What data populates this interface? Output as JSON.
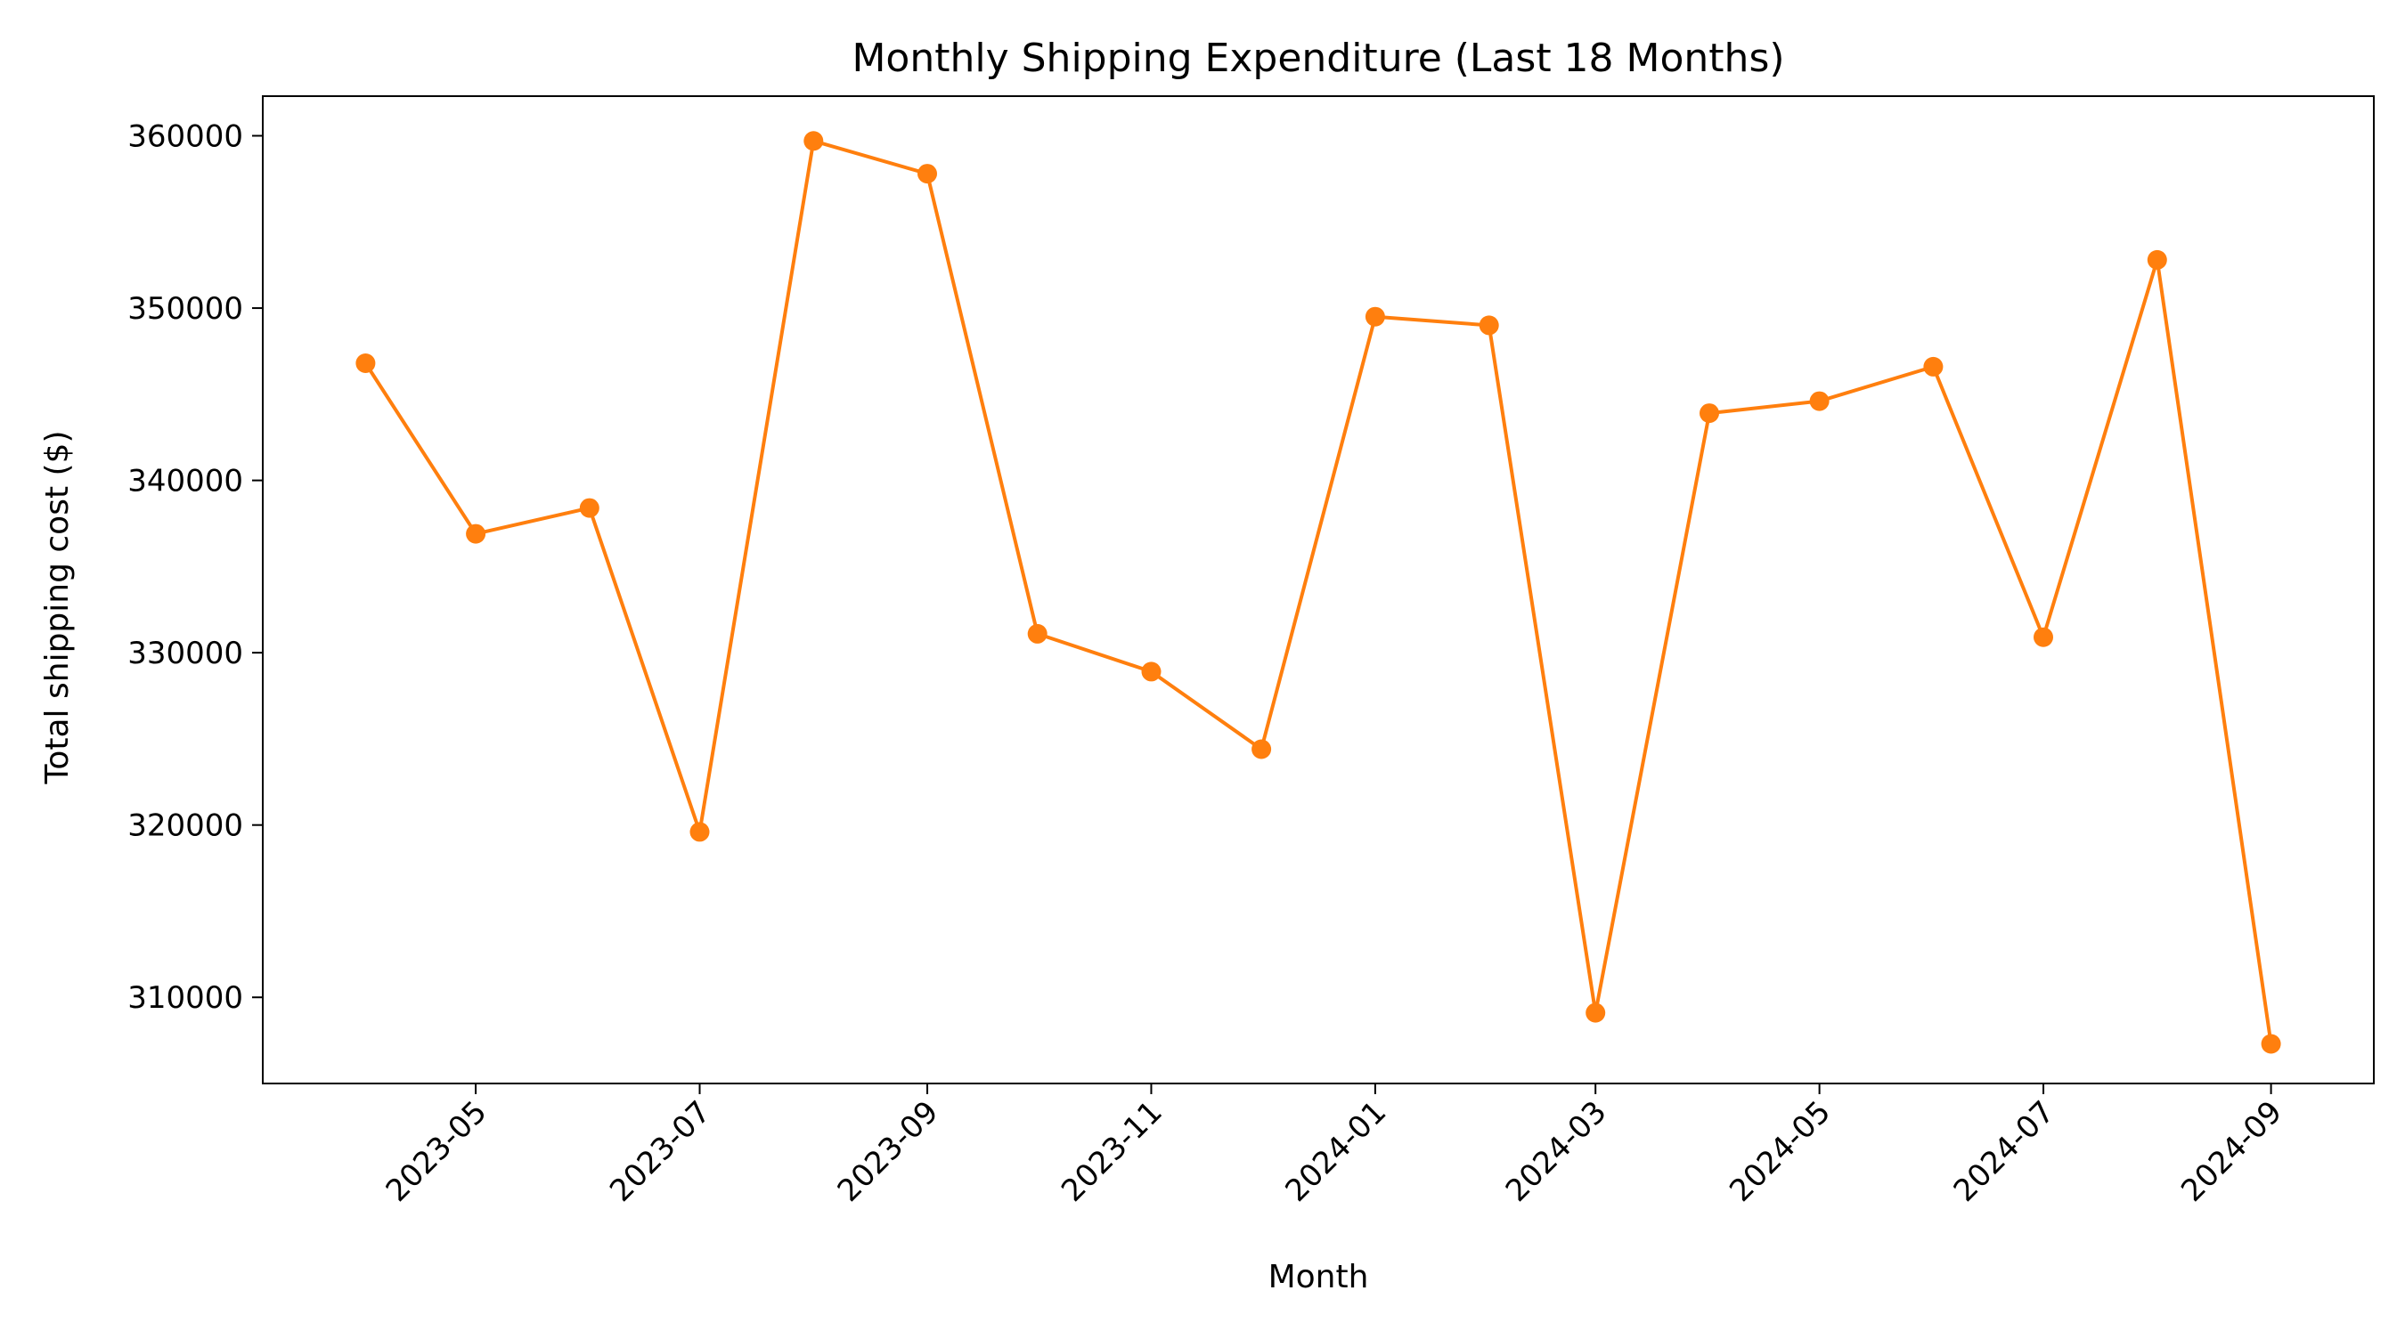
{
  "chart_data": {
    "type": "line",
    "title": "Monthly Shipping Expenditure (Last 18 Months)",
    "xlabel": "Month",
    "ylabel": "Total shipping cost ($)",
    "x": [
      "2023-04",
      "2023-05",
      "2023-06",
      "2023-07",
      "2023-08",
      "2023-09",
      "2023-10",
      "2023-11",
      "2023-12",
      "2024-01",
      "2024-02",
      "2024-03",
      "2024-04",
      "2024-05",
      "2024-06",
      "2024-07",
      "2024-08",
      "2024-09"
    ],
    "series": [
      {
        "values": [
          346800,
          336900,
          338400,
          319600,
          359700,
          357800,
          331100,
          328900,
          324400,
          349500,
          349000,
          309100,
          343900,
          344600,
          346600,
          330900,
          352800,
          307300
        ],
        "color": "#ff7f0e",
        "marker": "circle"
      }
    ],
    "x_ticks": [
      "2023-05",
      "2023-07",
      "2023-09",
      "2023-11",
      "2024-01",
      "2024-03",
      "2024-05",
      "2024-07",
      "2024-09"
    ],
    "y_ticks": [
      310000,
      320000,
      330000,
      340000,
      350000,
      360000
    ],
    "ylim": [
      305000,
      362300
    ],
    "xlim": [
      "2023-03-04",
      "2024-09-29"
    ],
    "grid": false,
    "legend": "none"
  }
}
